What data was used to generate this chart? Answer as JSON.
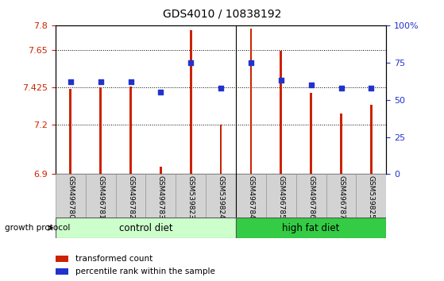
{
  "title": "GDS4010 / 10838192",
  "samples": [
    "GSM496780",
    "GSM496781",
    "GSM496782",
    "GSM496783",
    "GSM539823",
    "GSM539824",
    "GSM496784",
    "GSM496785",
    "GSM496786",
    "GSM496787",
    "GSM539825"
  ],
  "bar_values": [
    7.415,
    7.425,
    7.43,
    6.945,
    7.77,
    7.198,
    7.78,
    7.645,
    7.39,
    7.265,
    7.32
  ],
  "percentile_values": [
    62,
    62,
    62,
    55,
    75,
    58,
    75,
    63,
    60,
    58,
    58
  ],
  "ylim_left": [
    6.9,
    7.8
  ],
  "ylim_right": [
    0,
    100
  ],
  "yticks_left": [
    6.9,
    7.2,
    7.425,
    7.65,
    7.8
  ],
  "yticks_left_labels": [
    "6.9",
    "7.2",
    "7.425",
    "7.65",
    "7.8"
  ],
  "yticks_right": [
    0,
    25,
    50,
    75,
    100
  ],
  "yticks_right_labels": [
    "0",
    "25",
    "50",
    "75",
    "100%"
  ],
  "bar_color": "#cc2200",
  "dot_color": "#2233cc",
  "control_samples": 6,
  "high_fat_samples": 5,
  "control_label": "control diet",
  "high_fat_label": "high fat diet",
  "control_color": "#ccffcc",
  "high_fat_color": "#33cc44",
  "group_label": "growth protocol",
  "legend_bar_label": "transformed count",
  "legend_dot_label": "percentile rank within the sample",
  "dotted_gridlines": [
    7.2,
    7.425,
    7.65
  ],
  "bar_width": 0.07
}
